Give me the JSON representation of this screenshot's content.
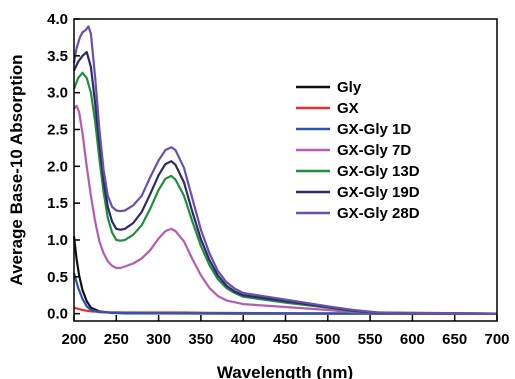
{
  "chart_data": {
    "type": "line",
    "xlabel": "Wavelength (nm)",
    "ylabel": "Average Base-10 Absorption",
    "xlim": [
      200,
      700
    ],
    "ylim": [
      -0.1,
      4.0
    ],
    "x_ticks": [
      200,
      250,
      300,
      350,
      400,
      450,
      500,
      550,
      600,
      650,
      700
    ],
    "y_ticks": [
      "0.0",
      "0.5",
      "1.0",
      "1.5",
      "2.0",
      "2.5",
      "3.0",
      "3.5",
      "4.0"
    ],
    "grid": false,
    "legend_position": "right",
    "series": [
      {
        "name": "Gly",
        "color": "#111111",
        "points": [
          [
            200,
            1.05
          ],
          [
            203,
            0.75
          ],
          [
            206,
            0.52
          ],
          [
            210,
            0.32
          ],
          [
            215,
            0.17
          ],
          [
            220,
            0.08
          ],
          [
            230,
            0.03
          ],
          [
            245,
            0.01
          ],
          [
            260,
            0.005
          ],
          [
            400,
            0.0
          ],
          [
            700,
            0.0
          ]
        ]
      },
      {
        "name": "GX",
        "color": "#e8312c",
        "points": [
          [
            200,
            0.08
          ],
          [
            210,
            0.05
          ],
          [
            220,
            0.03
          ],
          [
            240,
            0.02
          ],
          [
            270,
            0.015
          ],
          [
            300,
            0.015
          ],
          [
            330,
            0.015
          ],
          [
            360,
            0.012
          ],
          [
            400,
            0.008
          ],
          [
            500,
            0.005
          ],
          [
            700,
            0.0
          ]
        ]
      },
      {
        "name": "GX-Gly 1D",
        "color": "#2a55b5",
        "points": [
          [
            200,
            0.55
          ],
          [
            205,
            0.35
          ],
          [
            210,
            0.2
          ],
          [
            215,
            0.1
          ],
          [
            220,
            0.05
          ],
          [
            230,
            0.02
          ],
          [
            250,
            0.01
          ],
          [
            300,
            0.005
          ],
          [
            700,
            0.0
          ]
        ]
      },
      {
        "name": "GX-Gly 7D",
        "color": "#b85ab5",
        "points": [
          [
            200,
            2.78
          ],
          [
            203,
            2.82
          ],
          [
            206,
            2.74
          ],
          [
            210,
            2.45
          ],
          [
            215,
            2.0
          ],
          [
            220,
            1.6
          ],
          [
            225,
            1.25
          ],
          [
            230,
            0.98
          ],
          [
            235,
            0.82
          ],
          [
            240,
            0.71
          ],
          [
            245,
            0.65
          ],
          [
            250,
            0.62
          ],
          [
            255,
            0.62
          ],
          [
            260,
            0.64
          ],
          [
            270,
            0.68
          ],
          [
            280,
            0.75
          ],
          [
            290,
            0.86
          ],
          [
            300,
            1.02
          ],
          [
            308,
            1.12
          ],
          [
            315,
            1.15
          ],
          [
            320,
            1.12
          ],
          [
            330,
            0.98
          ],
          [
            340,
            0.74
          ],
          [
            350,
            0.52
          ],
          [
            360,
            0.35
          ],
          [
            370,
            0.24
          ],
          [
            380,
            0.18
          ],
          [
            400,
            0.13
          ],
          [
            450,
            0.09
          ],
          [
            500,
            0.05
          ],
          [
            530,
            0.02
          ],
          [
            560,
            0.01
          ],
          [
            700,
            0.0
          ]
        ]
      },
      {
        "name": "GX-Gly 13D",
        "color": "#1f8f3a",
        "points": [
          [
            200,
            3.05
          ],
          [
            205,
            3.2
          ],
          [
            210,
            3.27
          ],
          [
            215,
            3.2
          ],
          [
            220,
            3.0
          ],
          [
            225,
            2.6
          ],
          [
            230,
            2.1
          ],
          [
            235,
            1.65
          ],
          [
            240,
            1.3
          ],
          [
            245,
            1.1
          ],
          [
            250,
            1.0
          ],
          [
            255,
            0.99
          ],
          [
            260,
            1.0
          ],
          [
            270,
            1.07
          ],
          [
            280,
            1.2
          ],
          [
            290,
            1.42
          ],
          [
            300,
            1.68
          ],
          [
            308,
            1.83
          ],
          [
            315,
            1.87
          ],
          [
            320,
            1.82
          ],
          [
            330,
            1.6
          ],
          [
            340,
            1.25
          ],
          [
            350,
            0.92
          ],
          [
            360,
            0.66
          ],
          [
            370,
            0.47
          ],
          [
            380,
            0.35
          ],
          [
            390,
            0.28
          ],
          [
            400,
            0.23
          ],
          [
            450,
            0.15
          ],
          [
            500,
            0.08
          ],
          [
            530,
            0.03
          ],
          [
            560,
            0.01
          ],
          [
            700,
            0.0
          ]
        ]
      },
      {
        "name": "GX-Gly 19D",
        "color": "#2c2a6b",
        "points": [
          [
            200,
            3.3
          ],
          [
            205,
            3.42
          ],
          [
            210,
            3.5
          ],
          [
            215,
            3.55
          ],
          [
            220,
            3.35
          ],
          [
            225,
            2.85
          ],
          [
            230,
            2.3
          ],
          [
            235,
            1.8
          ],
          [
            240,
            1.45
          ],
          [
            245,
            1.25
          ],
          [
            250,
            1.15
          ],
          [
            255,
            1.14
          ],
          [
            260,
            1.15
          ],
          [
            270,
            1.23
          ],
          [
            280,
            1.38
          ],
          [
            290,
            1.62
          ],
          [
            300,
            1.88
          ],
          [
            308,
            2.03
          ],
          [
            315,
            2.07
          ],
          [
            320,
            2.02
          ],
          [
            330,
            1.78
          ],
          [
            340,
            1.38
          ],
          [
            350,
            1.01
          ],
          [
            360,
            0.73
          ],
          [
            370,
            0.52
          ],
          [
            380,
            0.38
          ],
          [
            390,
            0.3
          ],
          [
            400,
            0.25
          ],
          [
            450,
            0.17
          ],
          [
            500,
            0.09
          ],
          [
            530,
            0.04
          ],
          [
            560,
            0.01
          ],
          [
            700,
            0.0
          ]
        ]
      },
      {
        "name": "GX-Gly 28D",
        "color": "#6a4fb0",
        "points": [
          [
            200,
            3.4
          ],
          [
            203,
            3.6
          ],
          [
            207,
            3.75
          ],
          [
            210,
            3.82
          ],
          [
            214,
            3.85
          ],
          [
            217,
            3.9
          ],
          [
            220,
            3.8
          ],
          [
            225,
            3.2
          ],
          [
            230,
            2.5
          ],
          [
            235,
            1.95
          ],
          [
            240,
            1.6
          ],
          [
            245,
            1.45
          ],
          [
            250,
            1.4
          ],
          [
            255,
            1.39
          ],
          [
            260,
            1.4
          ],
          [
            270,
            1.47
          ],
          [
            280,
            1.6
          ],
          [
            290,
            1.85
          ],
          [
            300,
            2.08
          ],
          [
            308,
            2.22
          ],
          [
            315,
            2.26
          ],
          [
            320,
            2.22
          ],
          [
            330,
            1.98
          ],
          [
            340,
            1.56
          ],
          [
            350,
            1.14
          ],
          [
            360,
            0.82
          ],
          [
            370,
            0.58
          ],
          [
            380,
            0.43
          ],
          [
            390,
            0.34
          ],
          [
            400,
            0.28
          ],
          [
            450,
            0.19
          ],
          [
            500,
            0.1
          ],
          [
            530,
            0.05
          ],
          [
            560,
            0.015
          ],
          [
            700,
            0.0
          ]
        ]
      }
    ]
  }
}
